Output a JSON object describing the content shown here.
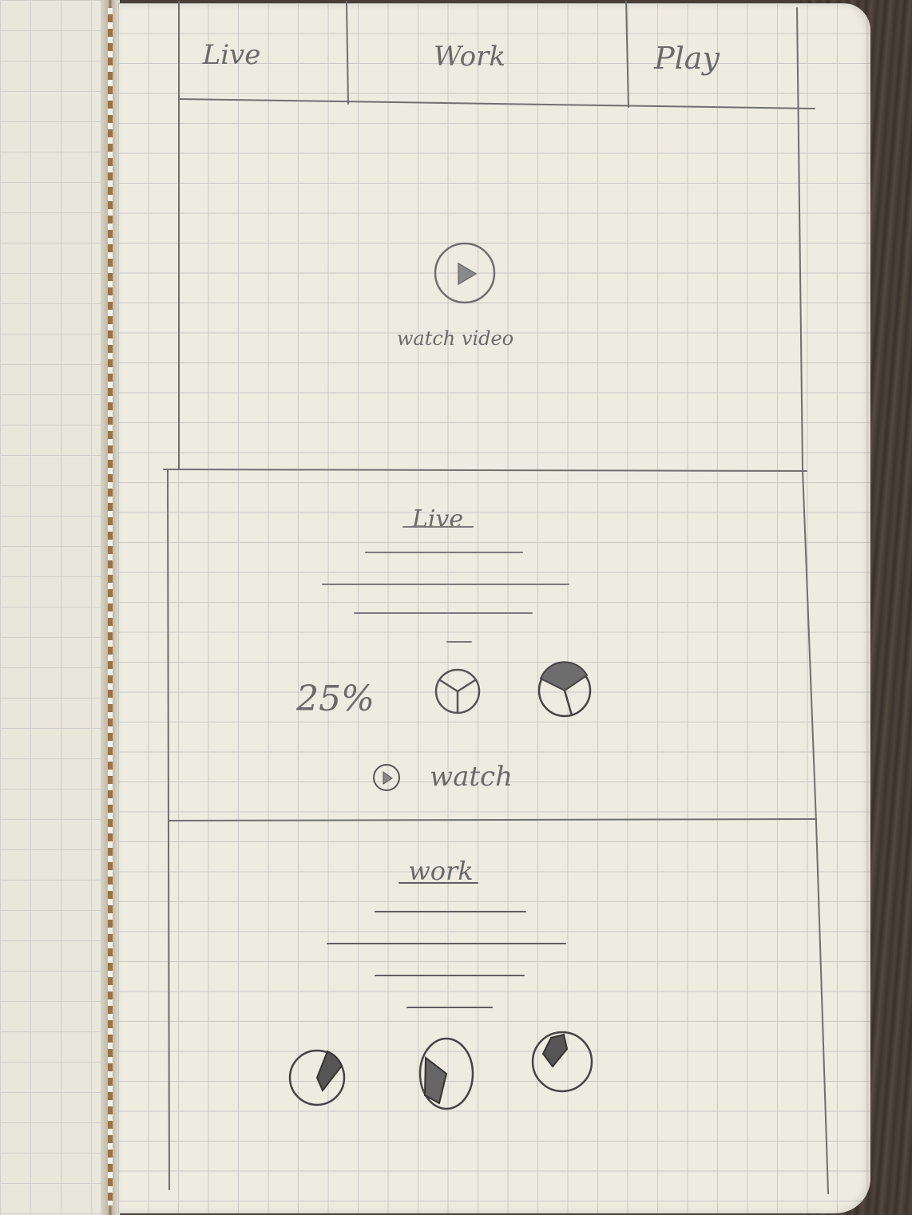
{
  "nav": {
    "tabs": [
      {
        "label": "Live"
      },
      {
        "label": "Work"
      },
      {
        "label": "Play"
      }
    ]
  },
  "hero": {
    "caption": "watch video",
    "icon": "play-icon"
  },
  "live_section": {
    "title": "Live",
    "stat_text": "25%",
    "watch_label": "watch",
    "icons": [
      "pie-chart-icon",
      "pie-chart-icon"
    ]
  },
  "work_section": {
    "title": "work",
    "icons": [
      "pie-chart-icon",
      "pie-chart-icon",
      "pie-chart-icon"
    ]
  },
  "colors": {
    "pencil": "#6a6a6a",
    "paper": "#eeebe1",
    "grid": "#c9c9c6"
  }
}
